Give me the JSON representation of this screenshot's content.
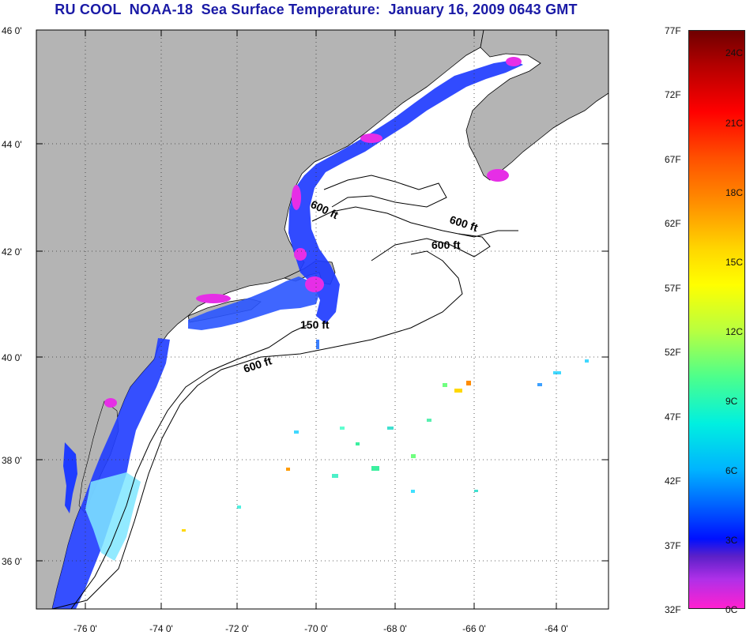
{
  "title": "RU COOL  NOAA-18  Sea Surface Temperature:  January 16, 2009 0643 GMT",
  "lat_labels": [
    "46 0'",
    "44 0'",
    "42 0'",
    "40 0'",
    "38 0'",
    "36 0'"
  ],
  "lon_labels": [
    "-76 0'",
    "-74 0'",
    "-72 0'",
    "-70 0'",
    "-68 0'",
    "-66 0'",
    "-64 0'"
  ],
  "contour_labels": [
    "600 ft",
    "600 ft",
    "600 ft",
    "150 ft",
    "600 ft"
  ],
  "colorbar": {
    "fahrenheit": [
      "77F",
      "72F",
      "67F",
      "62F",
      "57F",
      "52F",
      "47F",
      "42F",
      "37F",
      "32F"
    ],
    "celsius": [
      "24C",
      "21C",
      "18C",
      "15C",
      "12C",
      "9C",
      "6C",
      "3C",
      "0C"
    ]
  },
  "colors": {
    "title": "#1a1aa6",
    "land": "#b4b4b4",
    "water_no_data": "#ffffff",
    "cold_water": "#1f3cff",
    "coldest_water": "#e62ee6"
  }
}
